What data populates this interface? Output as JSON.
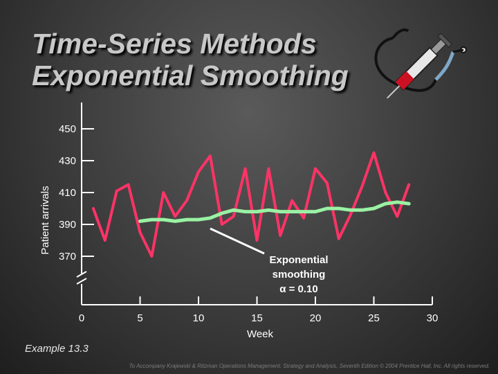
{
  "slide": {
    "title_line1": "Time-Series Methods",
    "title_line2": "Exponential Smoothing",
    "footer_example": "Example 13.3",
    "credit": "To Accompany Krajewski & Ritzman Operations Management: Strategy and Analysis, Seventh Edition © 2004 Prentice Hall, Inc. All rights reserved.",
    "illustration_icon": "syringe-stethoscope-icon"
  },
  "chart_data": {
    "type": "line",
    "xlabel": "Week",
    "ylabel": "Patient arrivals",
    "x_ticks": [
      0,
      5,
      10,
      15,
      20,
      25,
      30
    ],
    "y_ticks": [
      370,
      390,
      410,
      430,
      450
    ],
    "y_zero_label": "0",
    "y_axis_break": true,
    "xlim": [
      0,
      30
    ],
    "ylim": [
      360,
      450
    ],
    "grid": false,
    "colors": {
      "actual": "#ff3366",
      "smoothed": "#99f2a3"
    },
    "annotation": {
      "line1": "Exponential",
      "line2": "smoothing",
      "line3": "α = 0.10",
      "points_to": {
        "x": 11,
        "y": 390
      }
    },
    "series": [
      {
        "key": "actual",
        "x": [
          1,
          2,
          3,
          4,
          5,
          6,
          7,
          8,
          9,
          10,
          11,
          12,
          13,
          14,
          15,
          16,
          17,
          18,
          19,
          20,
          21,
          22,
          23,
          24,
          25,
          26,
          27,
          28
        ],
        "y": [
          400,
          380,
          411,
          415,
          385,
          370,
          410,
          395,
          405,
          423,
          433,
          390,
          395,
          425,
          380,
          425,
          383,
          405,
          394,
          425,
          416,
          381,
          396,
          414,
          435,
          410,
          395,
          415
        ]
      },
      {
        "key": "smoothed",
        "x": [
          5,
          6,
          7,
          8,
          9,
          10,
          11,
          12,
          13,
          14,
          15,
          16,
          17,
          18,
          19,
          20,
          21,
          22,
          23,
          24,
          25,
          26,
          27,
          28
        ],
        "y": [
          392,
          393,
          393,
          392,
          393,
          393,
          394,
          397,
          399,
          398,
          398,
          399,
          398,
          398,
          398,
          398,
          400,
          400,
          399,
          399,
          400,
          403,
          404,
          403
        ]
      }
    ]
  }
}
